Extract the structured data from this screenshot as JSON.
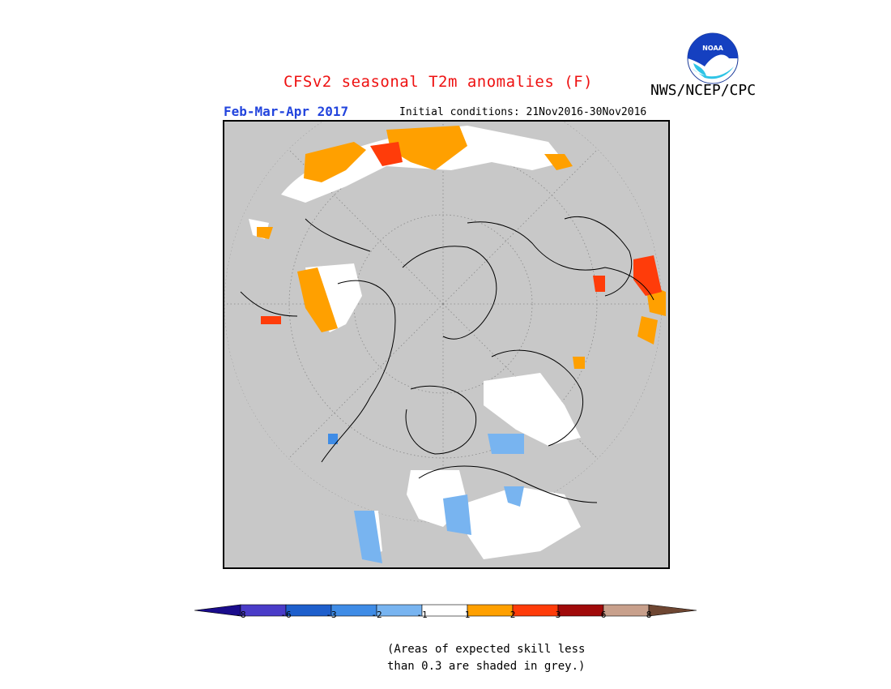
{
  "header": {
    "title": "CFSv2 seasonal T2m anomalies (F)",
    "title_color": "#ee1111",
    "agency": "NWS/NCEP/CPC",
    "season": "Feb-Mar-Apr 2017",
    "season_color": "#2244dd",
    "initial_conditions": "Initial conditions: 21Nov2016-30Nov2016",
    "logo_text": "NOAA"
  },
  "map": {
    "projection": "polar stereographic (north pole)",
    "background_color": "#c8c8c8",
    "low_skill_note": "Areas of expected skill less than 0.3 are shaded in grey."
  },
  "legend": {
    "labels": [
      "-8",
      "-6",
      "-3",
      "-2",
      "-1",
      "1",
      "2",
      "3",
      "6",
      "8"
    ],
    "colors": [
      "#1a0c8c",
      "#4a3cc8",
      "#1e5fcc",
      "#3f8ce6",
      "#78b4f0",
      "#ffffff",
      "#ffa000",
      "#ff3c0a",
      "#a00a0a",
      "#c8a08c",
      "#6e4632"
    ]
  },
  "footnote": {
    "line1": "(Areas of expected skill less",
    "line2": "than 0.3 are shaded in grey.)"
  }
}
